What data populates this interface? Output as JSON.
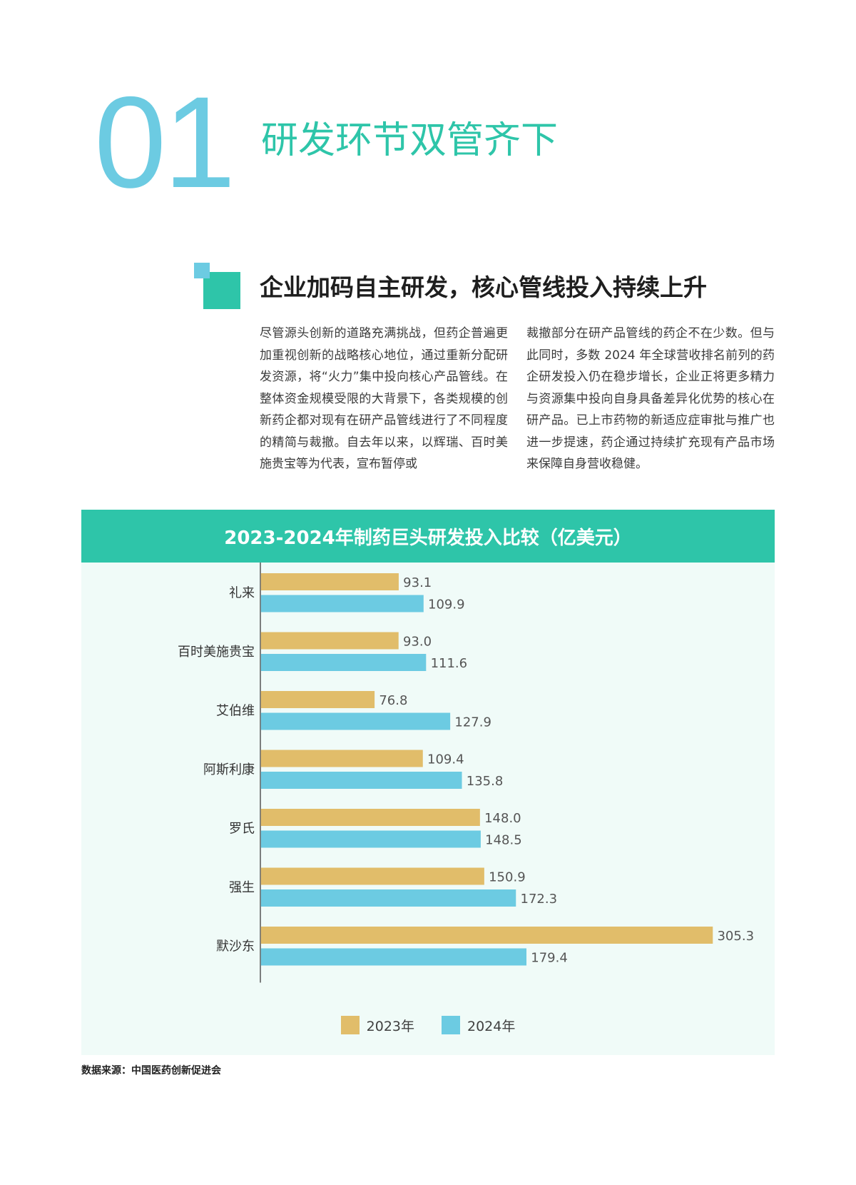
{
  "chapter": {
    "number": "01",
    "title": "研发环节双管齐下"
  },
  "section": {
    "title": "企业加码自主研发，核心管线投入持续上升",
    "paragraph_left": "尽管源头创新的道路充满挑战，但药企普遍更加重视创新的战略核心地位，通过重新分配研发资源，将“火力”集中投向核心产品管线。在整体资金规模受限的大背景下，各类规模的创新药企都对现有在研产品管线进行了不同程度的精简与裁撤。自去年以来，以辉瑞、百时美施贵宝等为代表，宣布暂停或",
    "paragraph_right": "裁撤部分在研产品管线的药企不在少数。但与此同时，多数 2024 年全球营收排名前列的药企研发投入仍在稳步增长，企业正将更多精力与资源集中投向自身具备差异化优势的核心在研产品。已上市药物的新适应症审批与推广也进一步提速，药企通过持续扩充现有产品市场来保障自身营收稳健。"
  },
  "chart_data": {
    "type": "bar",
    "orientation": "horizontal",
    "title": "2023-2024年制药巨头研发投入比较（亿美元）",
    "categories": [
      "礼来",
      "百时美施贵宝",
      "艾伯维",
      "阿斯利康",
      "罗氏",
      "强生",
      "默沙东"
    ],
    "series": [
      {
        "name": "2023年",
        "color": "#e1bd6a",
        "values": [
          93.1,
          93.0,
          76.8,
          109.4,
          148.0,
          150.9,
          305.3
        ],
        "labels": [
          "93.1",
          "93.0",
          "76.8",
          "109.4",
          "148.0",
          "150.9",
          "305.3"
        ]
      },
      {
        "name": "2024年",
        "color": "#6ccbe2",
        "values": [
          109.9,
          111.6,
          127.9,
          135.8,
          148.5,
          172.3,
          179.4
        ],
        "labels": [
          "109.9",
          "111.6",
          "127.9",
          "135.8",
          "148.5",
          "172.3",
          "179.4"
        ]
      }
    ],
    "xlim": [
      0,
      330
    ],
    "legend": "bottom-center",
    "grid": false
  },
  "source": "数据来源：中国医药创新促进会",
  "colors": {
    "accent_green": "#2ec5a9",
    "accent_blue": "#6ccbe2",
    "bar_2023": "#e1bd6a",
    "bar_2024": "#6ccbe2",
    "chart_panel_bg": "#f0fbf8"
  }
}
